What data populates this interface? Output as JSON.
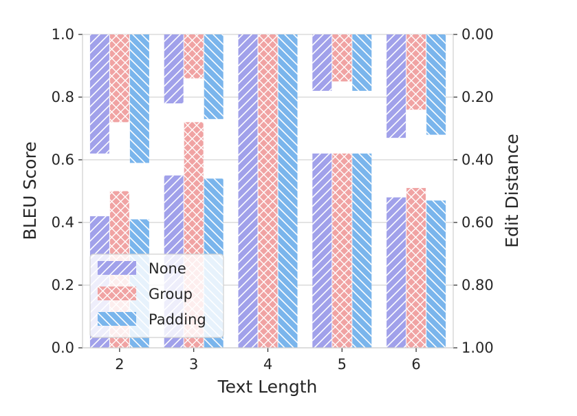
{
  "chart_data": {
    "type": "bar",
    "xlabel": "Text Length",
    "ylabel": "BLEU Score",
    "y2label": "Edit Distance",
    "categories": [
      "2",
      "3",
      "4",
      "5",
      "6"
    ],
    "ylim": [
      0,
      1
    ],
    "y2lim": [
      1,
      0
    ],
    "yticks": [
      "0.0",
      "0.2",
      "0.4",
      "0.6",
      "0.8",
      "1.0"
    ],
    "y2ticks": [
      "1.00",
      "0.80",
      "0.60",
      "0.40",
      "0.20",
      "0.00"
    ],
    "grid": true,
    "legend_position": "lower-left",
    "series": [
      {
        "name": "None",
        "color": "#a1a1ea",
        "hatch": "forward-diagonal",
        "bleu": [
          0.42,
          0.55,
          1.0,
          0.62,
          0.48
        ],
        "edit_distance": [
          0.38,
          0.22,
          0.0,
          0.18,
          0.33
        ]
      },
      {
        "name": "Group",
        "color": "#f0a3a3",
        "hatch": "cross-diagonal",
        "bleu": [
          0.5,
          0.72,
          1.0,
          0.62,
          0.51
        ],
        "edit_distance": [
          0.28,
          0.14,
          0.0,
          0.15,
          0.24
        ]
      },
      {
        "name": "Padding",
        "color": "#7ab5ec",
        "hatch": "back-diagonal",
        "bleu": [
          0.41,
          0.54,
          1.0,
          0.62,
          0.47
        ],
        "edit_distance": [
          0.41,
          0.27,
          0.0,
          0.18,
          0.32
        ]
      }
    ]
  }
}
